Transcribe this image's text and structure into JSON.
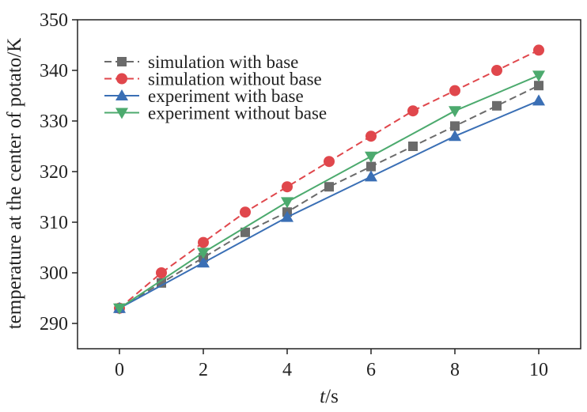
{
  "chart_data": {
    "type": "line",
    "title": "",
    "xlabel_italic": "t",
    "xlabel_unit": "/s",
    "ylabel": "temperature at the center of potato/K",
    "xlim": [
      -1,
      11
    ],
    "ylim": [
      285,
      350
    ],
    "xticks": [
      0,
      2,
      4,
      6,
      8,
      10
    ],
    "yticks": [
      290,
      300,
      310,
      320,
      330,
      340,
      350
    ],
    "grid": false,
    "legend_position": "upper-left",
    "series": [
      {
        "name": "simulation with base",
        "color": "#6b6b6b",
        "marker": "square",
        "dashed": true,
        "x": [
          0,
          1,
          2,
          3,
          4,
          5,
          6,
          7,
          8,
          9,
          10
        ],
        "y": [
          293,
          298,
          303,
          308,
          312,
          317,
          321,
          325,
          329,
          333,
          337
        ]
      },
      {
        "name": "simulation without base",
        "color": "#e0474c",
        "marker": "circle",
        "dashed": true,
        "x": [
          0,
          1,
          2,
          3,
          4,
          5,
          6,
          7,
          8,
          9,
          10
        ],
        "y": [
          293,
          300,
          306,
          312,
          317,
          322,
          327,
          332,
          336,
          340,
          344
        ]
      },
      {
        "name": "experiment with base",
        "color": "#3a6fb5",
        "marker": "triangle-up",
        "dashed": false,
        "x": [
          0,
          2,
          4,
          6,
          8,
          10
        ],
        "y": [
          293,
          302,
          311,
          319,
          327,
          334
        ]
      },
      {
        "name": "experiment without base",
        "color": "#4caa6e",
        "marker": "triangle-down",
        "dashed": false,
        "x": [
          0,
          2,
          4,
          6,
          8,
          10
        ],
        "y": [
          293,
          304,
          314,
          323,
          332,
          339
        ]
      }
    ]
  }
}
